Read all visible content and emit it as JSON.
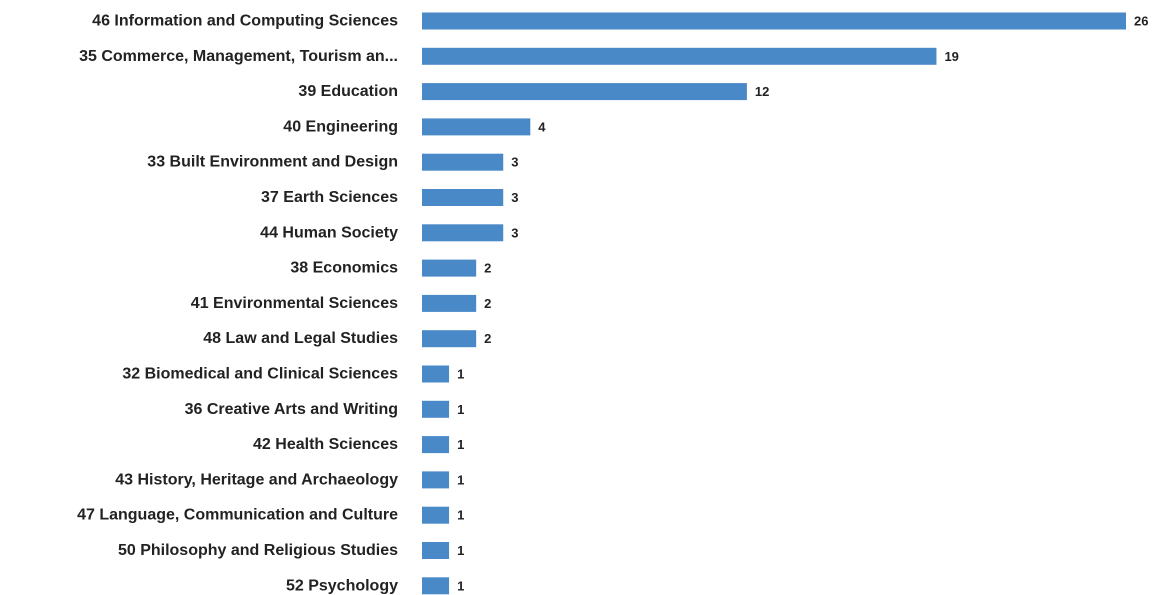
{
  "chart_data": {
    "type": "bar",
    "orientation": "horizontal",
    "categories": [
      "46 Information and Computing Sciences",
      "35 Commerce, Management, Tourism an...",
      "39 Education",
      "40 Engineering",
      "33 Built Environment and Design",
      "37 Earth Sciences",
      "44 Human Society",
      "38 Economics",
      "41 Environmental Sciences",
      "48 Law and Legal Studies",
      "32 Biomedical and Clinical Sciences",
      "36 Creative Arts and Writing",
      "42 Health Sciences",
      "43 History, Heritage and Archaeology",
      "47 Language, Communication and Culture",
      "50 Philosophy and Religious Studies",
      "52 Psychology"
    ],
    "values": [
      26,
      19,
      12,
      4,
      3,
      3,
      3,
      2,
      2,
      2,
      1,
      1,
      1,
      1,
      1,
      1,
      1
    ],
    "xlim": [
      0,
      26
    ],
    "grid": false,
    "bar_color": "#4a89c8"
  }
}
